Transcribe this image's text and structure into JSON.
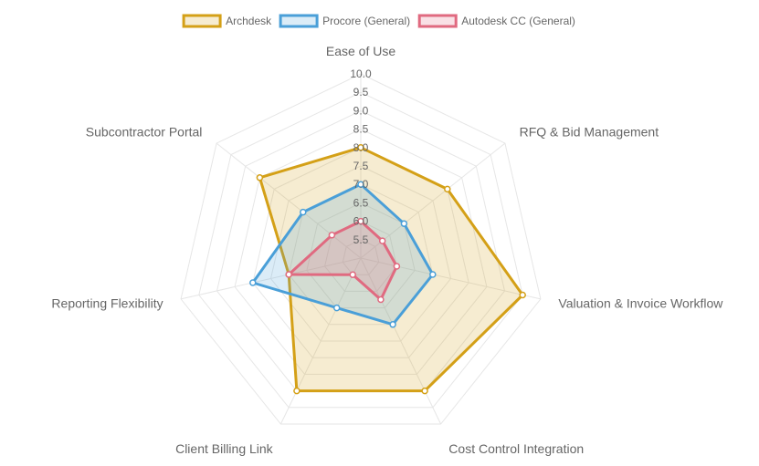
{
  "chart_data": {
    "type": "radar",
    "axes": [
      "Ease of Use",
      "RFQ & Bid Management",
      "Valuation & Invoice Workflow",
      "Cost Control Integration",
      "Client Billing Link",
      "Reporting Flexibility",
      "Subcontractor Portal"
    ],
    "r_min": 5.0,
    "r_max": 10.0,
    "ticks": [
      "5.5",
      "6.0",
      "6.5",
      "7.0",
      "7.5",
      "8.0",
      "8.5",
      "9.0",
      "9.5",
      "10.0"
    ],
    "grid": true,
    "legend_position": "top",
    "series": [
      {
        "name": "Archdesk",
        "values": [
          8.0,
          8.0,
          9.5,
          9.0,
          9.0,
          7.0,
          8.5
        ],
        "color": "#d4a017",
        "fill": "rgba(212,160,23,0.2)"
      },
      {
        "name": "Procore (General)",
        "values": [
          7.0,
          6.5,
          7.0,
          7.0,
          6.5,
          8.0,
          7.0
        ],
        "color": "#4a9fd8",
        "fill": "rgba(74,159,216,0.2)"
      },
      {
        "name": "Autodesk CC (General)",
        "values": [
          6.0,
          5.75,
          6.0,
          6.25,
          5.5,
          7.0,
          6.0
        ],
        "color": "#e06a80",
        "fill": "rgba(224,106,128,0.2)"
      }
    ]
  }
}
